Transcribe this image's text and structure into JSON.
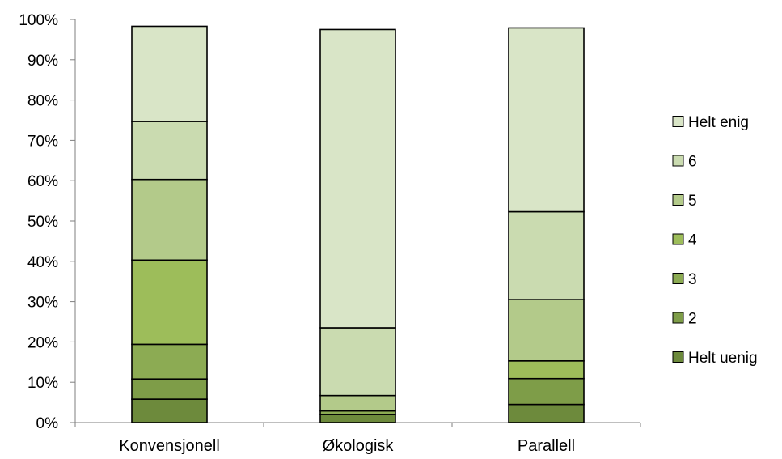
{
  "chart_data": {
    "type": "bar",
    "stacked": true,
    "categories": [
      "Konvensjonell",
      "Økologisk",
      "Parallell"
    ],
    "series": [
      {
        "name": "Helt uenig",
        "values": [
          5.8,
          2.0,
          4.5
        ],
        "color": "#6d8a3c"
      },
      {
        "name": "2",
        "values": [
          5.0,
          0.0,
          6.4
        ],
        "color": "#7e9d48"
      },
      {
        "name": "3",
        "values": [
          8.6,
          0.9,
          0.0
        ],
        "color": "#8cab53"
      },
      {
        "name": "4",
        "values": [
          20.9,
          0.0,
          4.4
        ],
        "color": "#9dbd5a"
      },
      {
        "name": "5",
        "values": [
          20.0,
          3.8,
          15.2
        ],
        "color": "#b3ca8a"
      },
      {
        "name": "6",
        "values": [
          14.4,
          16.8,
          21.8
        ],
        "color": "#cadbb0"
      },
      {
        "name": "Helt enig",
        "values": [
          23.6,
          74.0,
          45.6
        ],
        "color": "#d9e5c7"
      }
    ],
    "yticks": [
      "0%",
      "10%",
      "20%",
      "30%",
      "40%",
      "50%",
      "60%",
      "70%",
      "80%",
      "90%",
      "100%"
    ],
    "ylim": [
      0,
      100
    ],
    "legend_position": "right",
    "grid": false
  }
}
